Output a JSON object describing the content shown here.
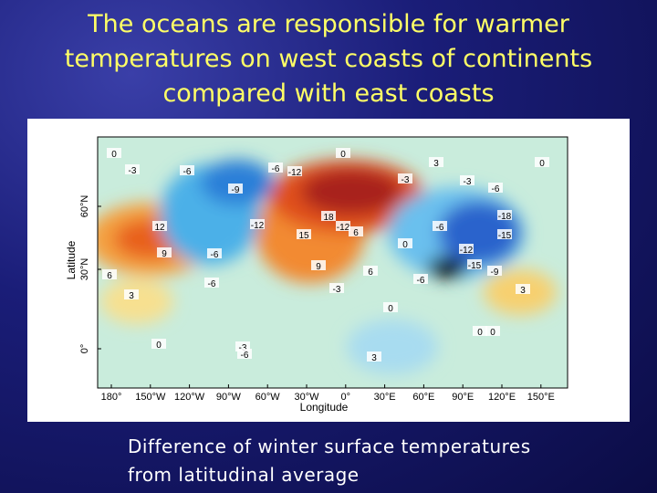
{
  "header": {
    "title": "The oceans are responsible for warmer temperatures on west coasts of continents compared with east coasts"
  },
  "map": {
    "xticks": [
      "180°",
      "150°W",
      "120°W",
      "90°W",
      "60°W",
      "30°W",
      "0°",
      "30°E",
      "60°E",
      "90°E",
      "120°E",
      "150°E"
    ],
    "yticks": [
      "0°",
      "30°N",
      "60°N"
    ],
    "x_label": "Longitude",
    "y_label": "Latitude",
    "contour_labels": [
      0,
      -3,
      -6,
      -9,
      -6,
      -12,
      0,
      3,
      0,
      -3,
      -3,
      -6,
      18,
      -12,
      6,
      15,
      -12,
      12,
      9,
      -6,
      9,
      6,
      -6,
      0,
      -6,
      -12,
      -15,
      -9,
      -18,
      -15,
      6,
      3,
      -6,
      -3,
      3,
      0,
      0,
      -3,
      -6,
      3,
      0,
      0
    ]
  },
  "caption": "Difference of winter surface temperatures from latitudinal average"
}
